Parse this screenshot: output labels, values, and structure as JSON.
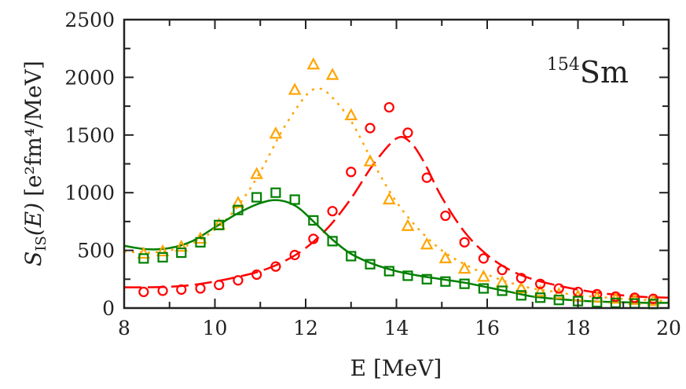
{
  "chart_data": {
    "type": "scatter",
    "xlabel": "E [MeV]",
    "ylabel": {
      "main": "S",
      "sub": "IS",
      "arg": "(E)",
      "unit": "[e²fm⁴/MeV]"
    },
    "annotation": {
      "mass": "154",
      "element": "Sm"
    },
    "xlim": [
      8,
      20
    ],
    "ylim": [
      0,
      2500
    ],
    "xticks": [
      "8",
      "10",
      "12",
      "14",
      "16",
      "18",
      "20"
    ],
    "yticks": [
      "0",
      "500",
      "1000",
      "1500",
      "2000",
      "2500"
    ],
    "grid": false,
    "x": [
      8.43,
      8.85,
      9.26,
      9.68,
      10.09,
      10.51,
      10.92,
      11.34,
      11.76,
      12.17,
      12.59,
      13.0,
      13.42,
      13.84,
      14.25,
      14.67,
      15.08,
      15.5,
      15.92,
      16.33,
      16.75,
      17.17,
      17.58,
      18.0,
      18.42,
      18.83,
      19.25,
      19.66
    ],
    "series": [
      {
        "marker": "triangle",
        "color": "#FFA500",
        "line": "dotted",
        "values": [
          470,
          490,
          530,
          600,
          720,
          910,
          1160,
          1510,
          1890,
          2110,
          2020,
          1670,
          1270,
          940,
          710,
          550,
          430,
          340,
          270,
          220,
          170,
          140,
          120,
          100,
          90,
          80,
          70,
          60
        ],
        "curve_x": [
          8,
          8.5,
          9,
          9.5,
          10,
          10.5,
          11,
          11.5,
          12,
          12.25,
          12.5,
          13,
          13.5,
          14,
          14.5,
          15,
          15.5,
          16,
          16.5,
          17,
          17.5,
          18,
          18.5,
          19,
          19.5,
          20
        ],
        "curve_y": [
          490,
          480,
          500,
          560,
          680,
          880,
          1180,
          1550,
          1840,
          1900,
          1860,
          1620,
          1250,
          920,
          680,
          500,
          380,
          290,
          220,
          170,
          140,
          110,
          95,
          80,
          70,
          60
        ]
      },
      {
        "marker": "circle",
        "color": "#FF0000",
        "line": "dashed",
        "values": [
          140,
          150,
          160,
          170,
          200,
          240,
          290,
          360,
          460,
          600,
          840,
          1180,
          1560,
          1740,
          1520,
          1130,
          800,
          570,
          430,
          330,
          260,
          210,
          170,
          140,
          120,
          100,
          90,
          80
        ],
        "curve_x": [
          8,
          8.5,
          9,
          9.5,
          10,
          10.5,
          11,
          11.5,
          12,
          12.5,
          13,
          13.5,
          14,
          14.3,
          14.6,
          15,
          15.5,
          16,
          16.5,
          17,
          17.5,
          18,
          18.5,
          19,
          19.5,
          20
        ],
        "curve_y": [
          180,
          180,
          185,
          200,
          230,
          270,
          320,
          400,
          520,
          700,
          950,
          1250,
          1470,
          1440,
          1270,
          960,
          660,
          460,
          330,
          250,
          200,
          160,
          130,
          110,
          95,
          90
        ]
      },
      {
        "marker": "square",
        "color": "#008000",
        "line": "solid",
        "values": [
          430,
          440,
          480,
          570,
          720,
          850,
          960,
          1000,
          940,
          760,
          580,
          450,
          380,
          320,
          280,
          250,
          230,
          210,
          170,
          150,
          110,
          90,
          70,
          60,
          50,
          45,
          40,
          35
        ],
        "curve_x": [
          8,
          8.5,
          9,
          9.5,
          10,
          10.5,
          11,
          11.4,
          11.8,
          12.2,
          12.6,
          13,
          13.5,
          14,
          14.5,
          15,
          15.5,
          16,
          16.5,
          17,
          17.5,
          18,
          18.5,
          19,
          19.5,
          20
        ],
        "curve_y": [
          540,
          510,
          520,
          580,
          700,
          820,
          910,
          935,
          880,
          740,
          590,
          470,
          380,
          320,
          280,
          250,
          220,
          180,
          140,
          100,
          80,
          65,
          55,
          50,
          45,
          45
        ]
      }
    ]
  }
}
